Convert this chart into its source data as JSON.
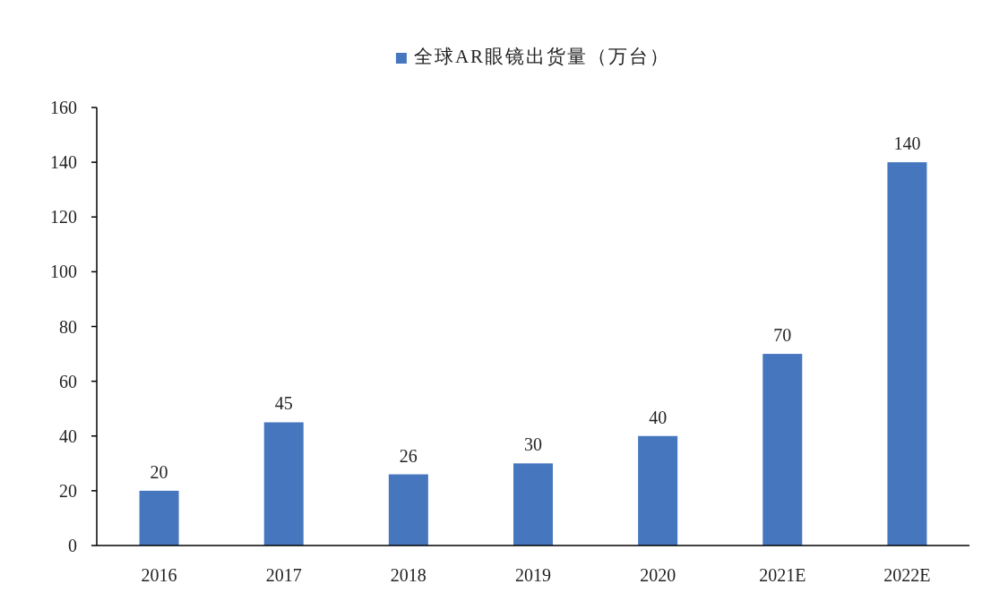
{
  "chart_data": {
    "type": "bar",
    "categories": [
      "2016",
      "2017",
      "2018",
      "2019",
      "2020",
      "2021E",
      "2022E"
    ],
    "series": [
      {
        "name": "全球AR眼镜出货量（万台）",
        "color": "#4677be",
        "values": [
          20,
          45,
          26,
          30,
          40,
          70,
          140
        ]
      }
    ],
    "ylim": [
      0,
      160
    ],
    "yticks": [
      0,
      20,
      40,
      60,
      80,
      100,
      120,
      140,
      160
    ],
    "data_labels": true,
    "legend": "top"
  }
}
